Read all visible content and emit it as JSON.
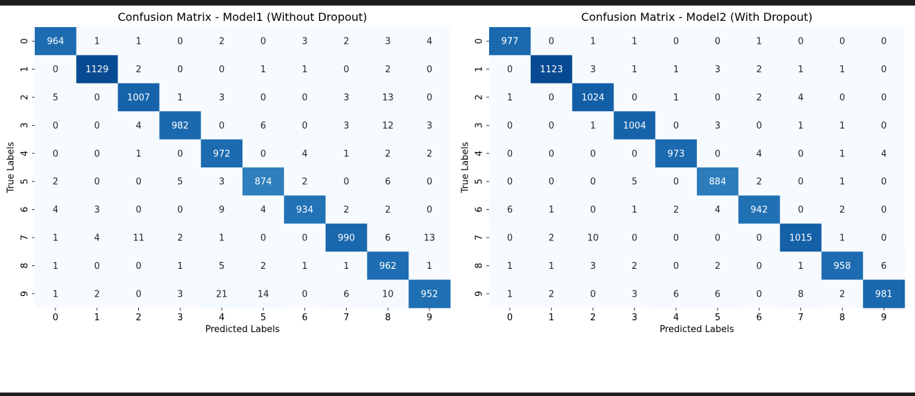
{
  "chart_data": [
    {
      "type": "heatmap",
      "title": "Confusion Matrix - Model1 (Without Dropout)",
      "xlabel": "Predicted Labels",
      "ylabel": "True Labels",
      "x_categories": [
        "0",
        "1",
        "2",
        "3",
        "4",
        "5",
        "6",
        "7",
        "8",
        "9"
      ],
      "y_categories": [
        "0",
        "1",
        "2",
        "3",
        "4",
        "5",
        "6",
        "7",
        "8",
        "9"
      ],
      "colormap": "Blues",
      "colorbar": false,
      "values": [
        [
          964,
          1,
          1,
          0,
          2,
          0,
          3,
          2,
          3,
          4
        ],
        [
          0,
          1129,
          2,
          0,
          0,
          1,
          1,
          0,
          2,
          0
        ],
        [
          5,
          0,
          1007,
          1,
          3,
          0,
          0,
          3,
          13,
          0
        ],
        [
          0,
          0,
          4,
          982,
          0,
          6,
          0,
          3,
          12,
          3
        ],
        [
          0,
          0,
          1,
          0,
          972,
          0,
          4,
          1,
          2,
          2
        ],
        [
          2,
          0,
          0,
          5,
          3,
          874,
          2,
          0,
          6,
          0
        ],
        [
          4,
          3,
          0,
          0,
          9,
          4,
          934,
          2,
          2,
          0
        ],
        [
          1,
          4,
          11,
          2,
          1,
          0,
          0,
          990,
          6,
          13
        ],
        [
          1,
          0,
          0,
          1,
          5,
          2,
          1,
          1,
          962,
          1
        ],
        [
          1,
          2,
          0,
          3,
          21,
          14,
          0,
          6,
          10,
          952
        ]
      ]
    },
    {
      "type": "heatmap",
      "title": "Confusion Matrix - Model2 (With Dropout)",
      "xlabel": "Predicted Labels",
      "ylabel": "True Labels",
      "x_categories": [
        "0",
        "1",
        "2",
        "3",
        "4",
        "5",
        "6",
        "7",
        "8",
        "9"
      ],
      "y_categories": [
        "0",
        "1",
        "2",
        "3",
        "4",
        "5",
        "6",
        "7",
        "8",
        "9"
      ],
      "colormap": "Blues",
      "colorbar": false,
      "values": [
        [
          977,
          0,
          1,
          1,
          0,
          0,
          1,
          0,
          0,
          0
        ],
        [
          0,
          1123,
          3,
          1,
          1,
          3,
          2,
          1,
          1,
          0
        ],
        [
          1,
          0,
          1024,
          0,
          1,
          0,
          2,
          4,
          0,
          0
        ],
        [
          0,
          0,
          1,
          1004,
          0,
          3,
          0,
          1,
          1,
          0
        ],
        [
          0,
          0,
          0,
          0,
          973,
          0,
          4,
          0,
          1,
          4
        ],
        [
          0,
          0,
          0,
          5,
          0,
          884,
          2,
          0,
          1,
          0
        ],
        [
          6,
          1,
          0,
          1,
          2,
          4,
          942,
          0,
          2,
          0
        ],
        [
          0,
          2,
          10,
          0,
          0,
          0,
          0,
          1015,
          1,
          0
        ],
        [
          1,
          1,
          3,
          2,
          0,
          2,
          0,
          1,
          958,
          6
        ],
        [
          1,
          2,
          0,
          3,
          6,
          6,
          0,
          8,
          2,
          981
        ]
      ]
    }
  ]
}
